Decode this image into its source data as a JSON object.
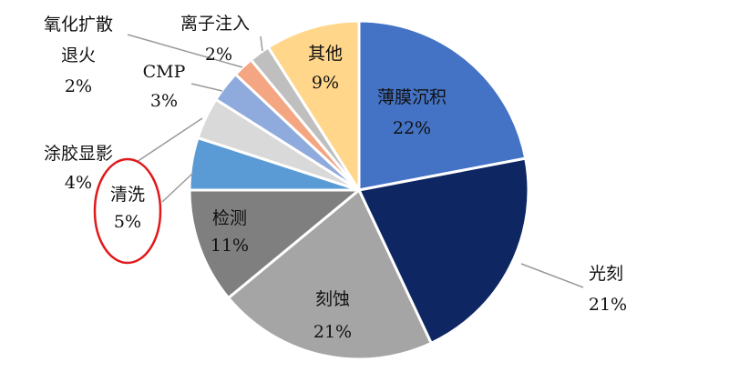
{
  "chart_data": {
    "type": "pie",
    "categories": [
      "薄膜沉积",
      "光刻",
      "刻蚀",
      "检测",
      "清洗",
      "涂胶显影",
      "CMP",
      "氧化扩散退火",
      "离子注入",
      "其他"
    ],
    "values": [
      22,
      21,
      21,
      11,
      5,
      4,
      3,
      2,
      2,
      9
    ],
    "value_labels": [
      "22%",
      "21%",
      "21%",
      "11%",
      "5%",
      "4%",
      "3%",
      "2%",
      "2%",
      "9%"
    ],
    "colors": [
      "#4472c4",
      "#0e2762",
      "#a5a5a5",
      "#7f7f7f",
      "#5b9bd5",
      "#d9d9d9",
      "#8faadc",
      "#f4a582",
      "#bfbfbf",
      "#ffd68a"
    ]
  }
}
